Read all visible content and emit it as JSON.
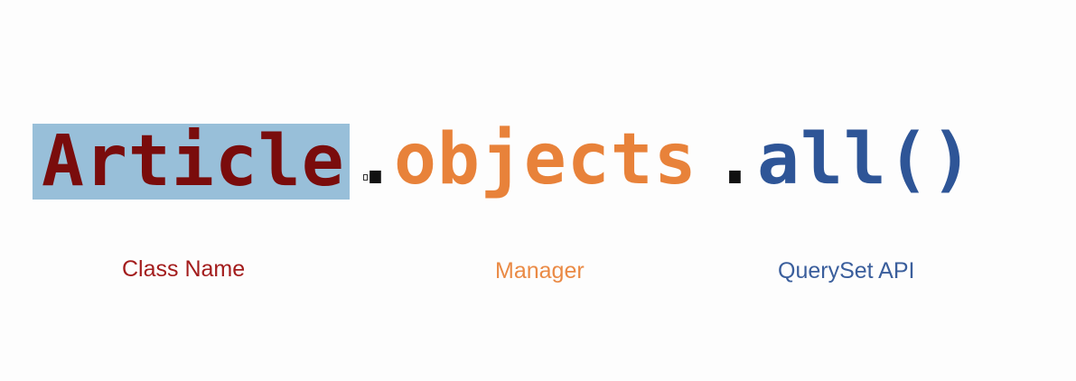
{
  "colors": {
    "background": "#fdfdfd",
    "class_text": "#7a0c0c",
    "class_highlight": "#98bfd9",
    "dot": "#111111",
    "manager": "#e8823a",
    "queryset": "#2e5597",
    "label_class": "#a31c1c",
    "label_manager": "#ea8a45",
    "label_api": "#3a5e9c"
  },
  "code": {
    "class_name": "Article",
    "dot1": ".",
    "manager": "objects",
    "dot2": ".",
    "queryset_call": "all()"
  },
  "labels": {
    "class_name": "Class Name",
    "manager": "Manager",
    "queryset_api": "QuerySet API"
  }
}
